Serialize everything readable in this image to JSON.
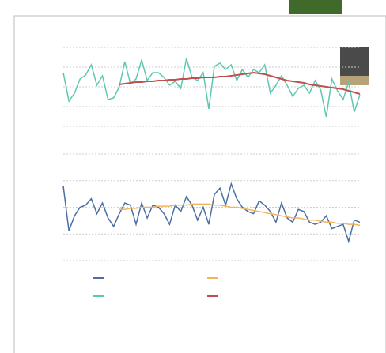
{
  "chart_data": [
    {
      "type": "line",
      "ylim": [
        0,
        100
      ],
      "series": [
        {
          "color": "#5cc8b0",
          "values": [
            68,
            32,
            42,
            60,
            65,
            78,
            52,
            64,
            34,
            36,
            50,
            82,
            54,
            60,
            84,
            58,
            68,
            68,
            62,
            52,
            57,
            48,
            86,
            62,
            58,
            68,
            22,
            76,
            80,
            72,
            78,
            58,
            72,
            62,
            72,
            68,
            78,
            42,
            52,
            64,
            52,
            38,
            48,
            52,
            42,
            58,
            46,
            12,
            60,
            45,
            34,
            56,
            18,
            40
          ]
        },
        {
          "color": "#c0504d",
          "values": [
            null,
            null,
            null,
            null,
            null,
            null,
            null,
            null,
            null,
            null,
            53,
            54,
            55,
            56,
            56,
            57,
            57,
            58,
            58,
            59,
            59,
            60,
            60,
            61,
            61,
            62,
            62,
            62,
            63,
            63,
            64,
            65,
            66,
            67,
            68,
            67,
            66,
            64,
            62,
            60,
            58,
            57,
            56,
            55,
            53,
            52,
            51,
            50,
            49,
            48,
            47,
            45,
            43,
            41
          ]
        }
      ]
    },
    {
      "type": "line",
      "ylim": [
        0,
        100
      ],
      "series": [
        {
          "color": "#4a6fa5",
          "values": [
            70,
            28,
            42,
            50,
            52,
            58,
            44,
            54,
            40,
            32,
            44,
            54,
            52,
            34,
            54,
            40,
            52,
            50,
            44,
            34,
            52,
            46,
            60,
            52,
            38,
            50,
            34,
            62,
            68,
            52,
            72,
            58,
            50,
            46,
            44,
            56,
            52,
            46,
            36,
            54,
            40,
            36,
            48,
            46,
            36,
            34,
            36,
            42,
            30,
            32,
            34,
            18,
            38,
            36
          ]
        },
        {
          "color": "#f2b45c",
          "values": [
            null,
            null,
            null,
            null,
            null,
            null,
            null,
            null,
            null,
            null,
            48,
            48,
            49,
            49,
            50,
            50,
            50,
            51,
            51,
            51,
            52,
            52,
            52,
            53,
            53,
            53,
            53,
            52,
            52,
            51,
            50,
            50,
            49,
            48,
            47,
            46,
            45,
            44,
            43,
            42,
            41,
            40,
            40,
            39,
            38,
            38,
            37,
            36,
            36,
            35,
            35,
            34,
            34,
            33
          ]
        }
      ]
    }
  ]
}
